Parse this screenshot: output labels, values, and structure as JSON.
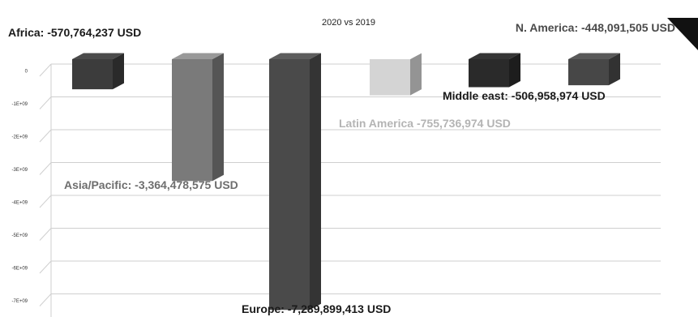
{
  "chart_data": {
    "type": "bar",
    "title": "2020 vs 2019",
    "xlabel": "",
    "ylabel": "",
    "grid": true,
    "ylim": [
      -7300000000,
      0
    ],
    "yticks": [
      "0",
      "-1E+09",
      "-2E+09",
      "-3E+09",
      "-4E+09",
      "-5E+09",
      "-6E+09",
      "-7E+09"
    ],
    "ytick_values": [
      0,
      -1000000000,
      -2000000000,
      -3000000000,
      -4000000000,
      -5000000000,
      -6000000000,
      -7000000000
    ],
    "categories": [
      "Africa",
      "Asia/Pacific",
      "Europe",
      "Latin America",
      "Middle east",
      "N. America"
    ],
    "values": [
      -570764237,
      -3364478575,
      -7289899413,
      -755736974,
      -506958974,
      -448091505
    ],
    "bar_colors": [
      "#3c3c3c",
      "#7a7a7a",
      "#4a4a4a",
      "#d4d4d4",
      "#2a2a2a",
      "#474747"
    ],
    "data_labels": [
      "Africa: -570,764,237 USD",
      "Asia/Pacific: -3,364,478,575 USD",
      "Europe: -7,289,899,413 USD",
      "Latin America -755,736,974 USD",
      "Middle east: -506,958,974 USD",
      "N. America: -448,091,505 USD"
    ],
    "label_colors": [
      "#1a1a1a",
      "#6e6e6e",
      "#1a1a1a",
      "#b4b4b4",
      "#1a1a1a",
      "#4a4a4a"
    ]
  }
}
